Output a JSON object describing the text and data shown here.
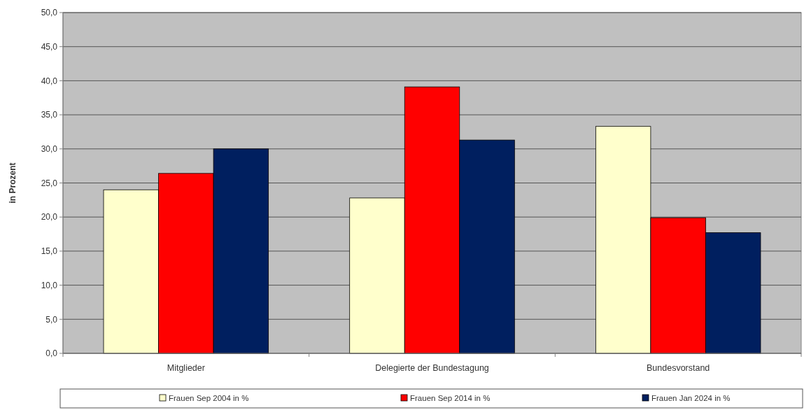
{
  "chart_data": {
    "type": "bar",
    "ylabel": "in Prozent",
    "categories": [
      "Mitglieder",
      "Delegierte der Bundestagung",
      "Bundesvorstand"
    ],
    "series": [
      {
        "name": "Frauen Sep 2004 in %",
        "color": "#ffffcc",
        "values": [
          24.0,
          22.8,
          33.3
        ]
      },
      {
        "name": "Frauen Sep 2014 in %",
        "color": "#ff0000",
        "values": [
          26.4,
          39.1,
          19.9
        ]
      },
      {
        "name": "Frauen Jan 2024 in %",
        "color": "#001f5f",
        "values": [
          30.0,
          31.3,
          17.7
        ]
      }
    ],
    "ylim": [
      0,
      50
    ],
    "yticks": [
      {
        "value": 0,
        "label": "0,0"
      },
      {
        "value": 5,
        "label": "5,0"
      },
      {
        "value": 10,
        "label": "10,0"
      },
      {
        "value": 15,
        "label": "15,0"
      },
      {
        "value": 20,
        "label": "20,0"
      },
      {
        "value": 25,
        "label": "25,0"
      },
      {
        "value": 30,
        "label": "30,0"
      },
      {
        "value": 35,
        "label": "35,0"
      },
      {
        "value": 40,
        "label": "40,0"
      },
      {
        "value": 45,
        "label": "45,0"
      },
      {
        "value": 50,
        "label": "50,0"
      }
    ],
    "grid": "y",
    "legend": "bottom"
  }
}
